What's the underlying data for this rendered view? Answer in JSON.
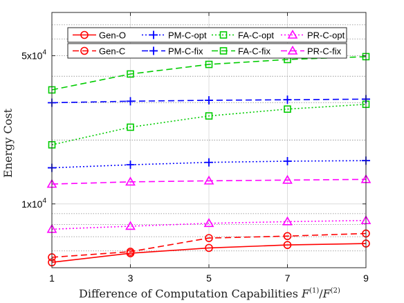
{
  "chart_data": {
    "type": "line",
    "xlabel": "Difference of Computation Capabilities F(1)/F(2)",
    "xlabel_parts": {
      "prefix": "Difference of Computation Capabilities ",
      "var": "F",
      "sup1": "(1)",
      "slash": "/",
      "sup2": "(2)"
    },
    "ylabel": "Energy Cost",
    "x_scale": "linear",
    "y_scale": "log",
    "xlim": [
      1,
      9
    ],
    "ylim": [
      5000,
      80000
    ],
    "x": [
      1,
      3,
      5,
      7,
      9
    ],
    "x_tick_labels": [
      "1",
      "3",
      "5",
      "7",
      "9"
    ],
    "y_ticks": [
      {
        "value": 10000,
        "mantissa": "1x10",
        "exponent": "4"
      },
      {
        "value": 50000,
        "mantissa": "5x10",
        "exponent": "4"
      }
    ],
    "grid": true,
    "legend_position": "top",
    "series": [
      {
        "name": "Gen-O",
        "color": "#ff0000",
        "dash": "solid",
        "marker": "circle",
        "values": [
          5300,
          5850,
          6200,
          6400,
          6500
        ]
      },
      {
        "name": "PM-C-opt",
        "color": "#0000ff",
        "dash": "dotted",
        "marker": "plus",
        "values": [
          14800,
          15300,
          15700,
          15900,
          16000
        ]
      },
      {
        "name": "FA-C-opt",
        "color": "#00cc00",
        "dash": "dotted",
        "marker": "square",
        "values": [
          19000,
          23000,
          26000,
          28000,
          29500
        ]
      },
      {
        "name": "PR-C-opt",
        "color": "#ff00ff",
        "dash": "dotted",
        "marker": "triangle",
        "values": [
          7600,
          7850,
          8100,
          8250,
          8350
        ]
      },
      {
        "name": "Gen-C",
        "color": "#ff0000",
        "dash": "dashed",
        "marker": "circle",
        "values": [
          5600,
          5950,
          6900,
          7050,
          7250
        ]
      },
      {
        "name": "PM-C-fix",
        "color": "#0000ff",
        "dash": "dashed",
        "marker": "plus",
        "values": [
          30000,
          30500,
          30800,
          31000,
          31200
        ]
      },
      {
        "name": "FA-C-fix",
        "color": "#00cc00",
        "dash": "dashed",
        "marker": "square",
        "values": [
          34500,
          41000,
          45500,
          48000,
          49500
        ]
      },
      {
        "name": "PR-C-fix",
        "color": "#ff00ff",
        "dash": "dashed",
        "marker": "triangle",
        "values": [
          12400,
          12700,
          12850,
          12950,
          13050
        ]
      }
    ]
  }
}
